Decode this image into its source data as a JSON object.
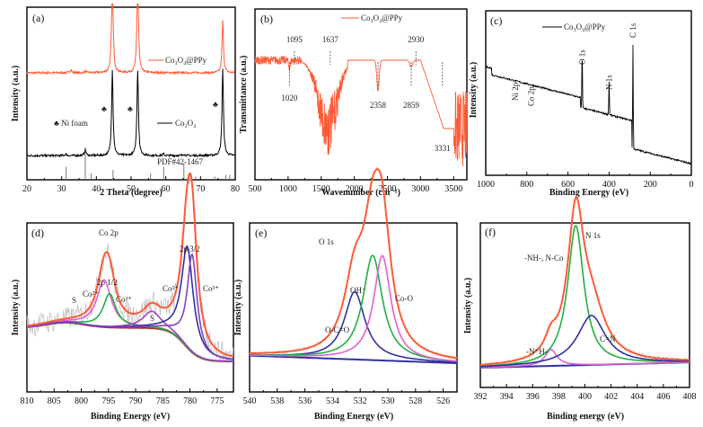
{
  "chart_data": [
    {
      "id": "a",
      "panel_label": "(a)",
      "type": "line",
      "title": "",
      "xlabel": "2 Theta (degree)",
      "ylabel": "Intensity (a.u.)",
      "xlim": [
        20,
        80
      ],
      "xticks": [
        20,
        30,
        40,
        50,
        60,
        70,
        80
      ],
      "grid": false,
      "legend_position": "inline",
      "series": [
        {
          "name": "Co3O4@PPy",
          "color": "#ff5a36",
          "baseline": 0.62,
          "peaks": [
            [
              32.6,
              0.02
            ],
            [
              36.8,
              0.01
            ],
            [
              44.6,
              0.6
            ],
            [
              51.9,
              0.6
            ],
            [
              76.4,
              0.3
            ]
          ]
        },
        {
          "name": "Co3O4",
          "color": "#000000",
          "baseline": 0.14,
          "peaks": [
            [
              31.2,
              0.01
            ],
            [
              36.8,
              0.04
            ],
            [
              44.6,
              0.5
            ],
            [
              51.9,
              0.5
            ],
            [
              59.3,
              0.01
            ],
            [
              65.2,
              0.01
            ],
            [
              76.4,
              0.5
            ]
          ]
        }
      ],
      "reference": {
        "name": "PDF#42-1467",
        "color": "#777777",
        "lines": [
          [
            31.3,
            0.4
          ],
          [
            36.8,
            1.0
          ],
          [
            38.5,
            0.2
          ],
          [
            44.8,
            0.3
          ],
          [
            55.6,
            0.2
          ],
          [
            59.4,
            0.4
          ],
          [
            65.2,
            0.5
          ],
          [
            68.6,
            0.1
          ],
          [
            74.1,
            0.1
          ],
          [
            77.3,
            0.15
          ],
          [
            78.4,
            0.15
          ]
        ]
      },
      "annotations": [
        "♣ Ni foam"
      ],
      "marker_positions": [
        42.5,
        50.2,
        74.7
      ],
      "legend_labels": {
        "s1": "Co3O4@PPy",
        "s2": "Co3O4"
      }
    },
    {
      "id": "b",
      "panel_label": "(b)",
      "type": "line",
      "title": "",
      "xlabel": "Wavenumber (cm-1)",
      "ylabel": "Transmittance (a.u.)",
      "xlim": [
        500,
        3700
      ],
      "xticks": [
        500,
        1000,
        1500,
        2000,
        2500,
        3000,
        3500
      ],
      "grid": false,
      "series": [
        {
          "name": "Co3O4@PPy",
          "color": "#ff5a36"
        }
      ],
      "peak_labels": [
        {
          "x": 1095,
          "label": "1095",
          "pos": "top"
        },
        {
          "x": 1637,
          "label": "1637",
          "pos": "top"
        },
        {
          "x": 2930,
          "label": "2930",
          "pos": "top"
        },
        {
          "x": 1020,
          "label": "1020",
          "pos": "bottom"
        },
        {
          "x": 2358,
          "label": "2358",
          "pos": "bottom"
        },
        {
          "x": 2859,
          "label": "2859",
          "pos": "bottom"
        },
        {
          "x": 3331,
          "label": "3331",
          "pos": "bottom"
        }
      ]
    },
    {
      "id": "c",
      "panel_label": "(c)",
      "type": "line",
      "title": "",
      "xlabel": "Binding Energy (eV)",
      "ylabel": "Intensity (a.u.)",
      "xlim": [
        1000,
        0
      ],
      "xticks": [
        1000,
        800,
        600,
        400,
        200,
        0
      ],
      "grid": false,
      "series": [
        {
          "name": "Co3O4@PPy",
          "color": "#000000"
        }
      ],
      "peak_labels": [
        {
          "x": 855,
          "label": "Ni 2p"
        },
        {
          "x": 780,
          "label": "Co 2p"
        },
        {
          "x": 531,
          "label": "O 1s"
        },
        {
          "x": 400,
          "label": "N 1s"
        },
        {
          "x": 284,
          "label": "C 1s"
        }
      ]
    },
    {
      "id": "d",
      "panel_label": "(d)",
      "type": "line",
      "title": "Co 2p",
      "xlabel": "Binding Energy (eV)",
      "ylabel": "Intensity (a.u.)",
      "xlim": [
        810,
        772
      ],
      "xticks": [
        810,
        805,
        800,
        795,
        790,
        785,
        780,
        775
      ],
      "grid": false,
      "fit_components": [
        {
          "name": "Co2+ (2p1/2)",
          "color": "#e060d0",
          "center": 795.8,
          "height": 0.28,
          "width": 1.6
        },
        {
          "name": "Co3+ (2p1/2)",
          "color": "#20b040",
          "center": 794.8,
          "height": 0.2,
          "width": 1.4
        },
        {
          "name": "S",
          "color": "#a040c0",
          "center": 787.0,
          "height": 0.1,
          "width": 2.0
        },
        {
          "name": "Co2+ (2p3/2)",
          "color": "#3030a0",
          "center": 780.5,
          "height": 0.6,
          "width": 1.3
        },
        {
          "name": "Co3+ (2p3/2)",
          "color": "#8040c0",
          "center": 779.6,
          "height": 0.58,
          "width": 1.1
        }
      ],
      "envelope_color": "#ff5a36",
      "background_color": "#b02020",
      "annotations": [
        "2p 1/2",
        "2p 3/2",
        "Co2+",
        "Co3+",
        "Co2+",
        "Co3+",
        "S",
        "S"
      ]
    },
    {
      "id": "e",
      "panel_label": "(e)",
      "type": "line",
      "title": "O 1s",
      "xlabel": "Binding Energy (eV)",
      "ylabel": "Intensity (a.u.)",
      "xlim": [
        540,
        525
      ],
      "xticks": [
        540,
        538,
        536,
        534,
        532,
        530,
        528,
        526
      ],
      "grid": false,
      "fit_components": [
        {
          "name": "O-C=O",
          "color": "#3030a0",
          "center": 532.4,
          "height": 0.4,
          "width": 0.9
        },
        {
          "name": "OH-",
          "color": "#20b040",
          "center": 531.1,
          "height": 0.62,
          "width": 0.85
        },
        {
          "name": "Co-O",
          "color": "#e060d0",
          "center": 530.4,
          "height": 0.62,
          "width": 0.75
        }
      ],
      "envelope_color": "#ff5a36",
      "background_color": "#3030a0",
      "annotations": [
        "OH-",
        "O-C=O",
        "Co-O"
      ]
    },
    {
      "id": "f",
      "panel_label": "(f)",
      "type": "line",
      "title": "N 1s",
      "xlabel": "Binding energy (eV)",
      "ylabel": "Intensity (a.u.)",
      "xlim": [
        392,
        408
      ],
      "xticks": [
        392,
        394,
        396,
        398,
        400,
        402,
        404,
        406,
        408
      ],
      "grid": false,
      "fit_components": [
        {
          "name": "-N+H-",
          "color": "#e060d0",
          "center": 397.4,
          "height": 0.1,
          "width": 0.55
        },
        {
          "name": "-NH-, N-Co",
          "color": "#20b040",
          "center": 399.3,
          "height": 0.85,
          "width": 0.75
        },
        {
          "name": "C=N",
          "color": "#3030a0",
          "center": 400.5,
          "height": 0.3,
          "width": 1.3
        }
      ],
      "envelope_color": "#ff5a36",
      "background_color": "#3030a0",
      "annotations": [
        "-NH-, N-Co",
        "C=N",
        "-N+H-"
      ]
    }
  ],
  "labels": {
    "a": {
      "panel": "(a)",
      "xlabel": "2 Theta (degree)",
      "ylabel": "Intensity (a.u.)",
      "legend1": "Co₃O₄@PPy",
      "legend2": "Co₃O₄",
      "nifoam": "♣ Ni foam",
      "club": "♣",
      "pdf": "PDF#42-1467"
    },
    "b": {
      "panel": "(b)",
      "xlabel": "Wavenumber (cm⁻¹)",
      "ylabel": "Transmittance (a.u.)",
      "legend": "Co₃O₄@PPy"
    },
    "c": {
      "panel": "(c)",
      "xlabel": "Binding Energy (eV)",
      "ylabel": "Intensity (a.u.)",
      "legend": "Co₃O₄@PPy"
    },
    "d": {
      "panel": "(d)",
      "title": "Co 2p",
      "xlabel": "Binding Energy (eV)",
      "ylabel": "Intensity (a.u.)",
      "p12": "2p 1/2",
      "p32": "2p 3/2",
      "co2": "Co²⁺",
      "co3": "Co³⁺",
      "s": "S"
    },
    "e": {
      "panel": "(e)",
      "title": "O 1s",
      "xlabel": "Binding Energy (eV)",
      "ylabel": "Intensity (a.u.)",
      "oh": "OH⁻",
      "oco": "O-C=O",
      "coo": "Co-O"
    },
    "f": {
      "panel": "(f)",
      "title": "N 1s",
      "xlabel": "Binding energy (eV)",
      "ylabel": "Intensity (a.u.)",
      "nhnco": "-NH-, N-Co",
      "cn": "C=N",
      "nph": "-N⁺H-"
    }
  }
}
